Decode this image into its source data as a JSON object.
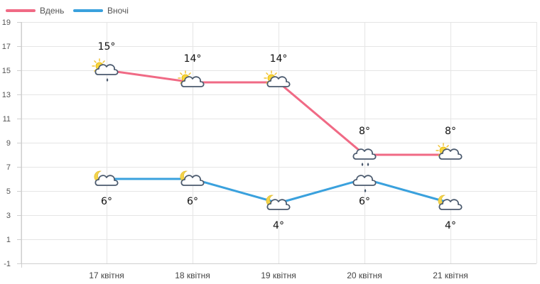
{
  "chart_data": {
    "type": "line",
    "categories": [
      "17 квітня",
      "18 квітня",
      "19 квітня",
      "20 квітня",
      "21 квітня"
    ],
    "ylim": [
      -1,
      19
    ],
    "yticks": [
      -1,
      1,
      3,
      5,
      7,
      9,
      11,
      13,
      15,
      17,
      19
    ],
    "grid": true,
    "legend_position": "top-left",
    "series": [
      {
        "name": "Вдень",
        "color": "#f06a85",
        "values": [
          15,
          14,
          14,
          8,
          8
        ],
        "labels": [
          "15°",
          "14°",
          "14°",
          "8°",
          "8°"
        ],
        "icons": [
          "sun-cloud-rain-icon",
          "sun-cloud-icon",
          "sun-cloud-icon",
          "cloud-rain-icon",
          "sun-cloud-icon"
        ]
      },
      {
        "name": "Вночі",
        "color": "#3aa1dd",
        "values": [
          6,
          6,
          4,
          6,
          4
        ],
        "labels": [
          "6°",
          "6°",
          "4°",
          "6°",
          "4°"
        ],
        "icons": [
          "moon-cloud-icon",
          "moon-cloud-icon",
          "moon-cloud-icon",
          "cloud-rain-icon",
          "moon-cloud-icon"
        ]
      }
    ]
  }
}
